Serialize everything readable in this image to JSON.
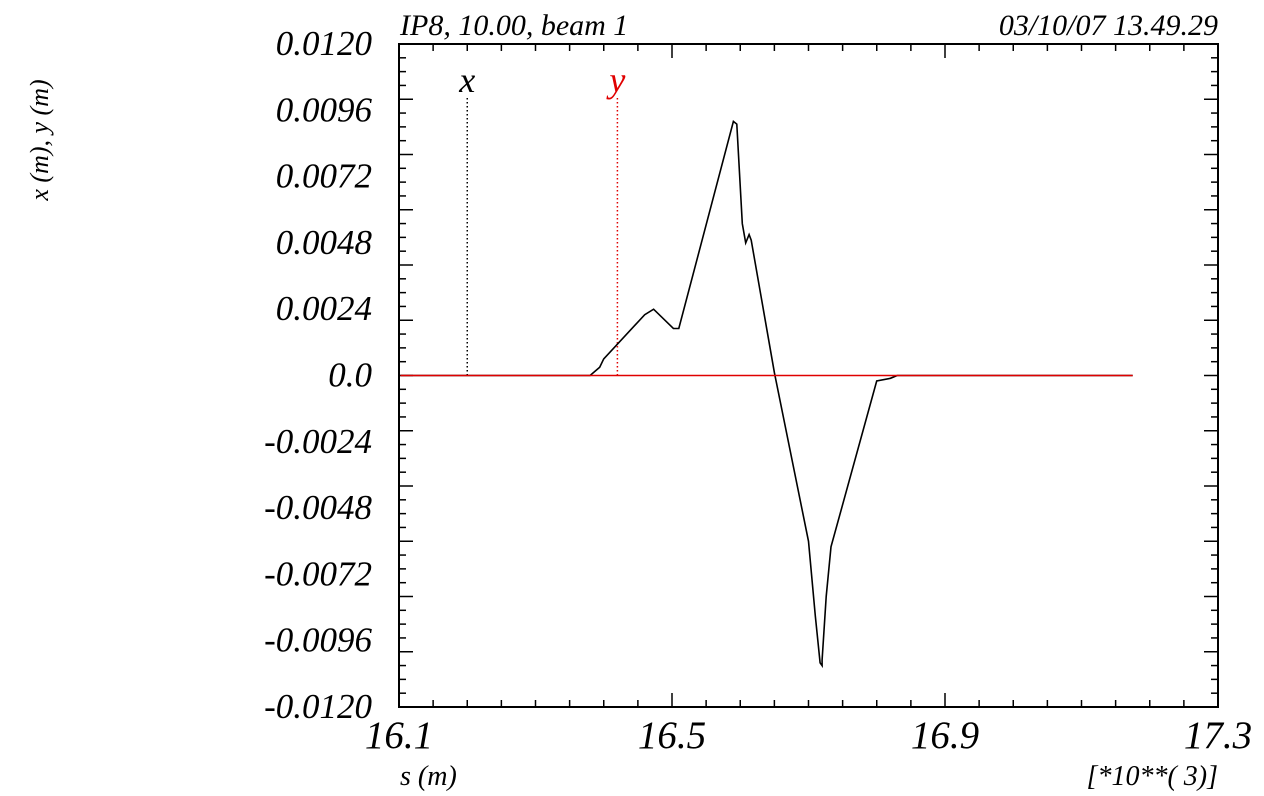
{
  "chart_data": {
    "type": "line",
    "header_left": "IP8, 10.00, beam 1",
    "header_right": "03/10/07 13.49.29",
    "ylabel": "x (m), y (m)",
    "xlabel": "s (m)",
    "x_scale_note": "[*10**( 3)]",
    "xlim": [
      16.1,
      17.3
    ],
    "ylim": [
      -0.012,
      0.012
    ],
    "x_ticks": [
      "16.1",
      "16.5",
      "16.9",
      "17.3"
    ],
    "x_tick_values": [
      16.1,
      16.5,
      16.9,
      17.3
    ],
    "y_ticks": [
      "0.0120",
      "0.0096",
      "0.0072",
      "0.0048",
      "0.0024",
      "0.0",
      "-0.0024",
      "-0.0048",
      "-0.0072",
      "-0.0096",
      "-0.0120"
    ],
    "y_tick_values": [
      0.012,
      0.0096,
      0.0072,
      0.0048,
      0.0024,
      0.0,
      -0.0024,
      -0.0048,
      -0.0072,
      -0.0096,
      -0.012
    ],
    "markers": [
      {
        "label": "x",
        "s": 16.2,
        "color": "#000000"
      },
      {
        "label": "y",
        "s": 16.42,
        "color": "#e00000"
      }
    ],
    "series": [
      {
        "name": "x",
        "color": "#000000",
        "points": [
          [
            16.102,
            0.0
          ],
          [
            16.38,
            0.0
          ],
          [
            16.394,
            0.0003
          ],
          [
            16.4,
            0.0006
          ],
          [
            16.46,
            0.0022
          ],
          [
            16.473,
            0.0024
          ],
          [
            16.502,
            0.0017
          ],
          [
            16.51,
            0.0017
          ],
          [
            16.59,
            0.0092
          ],
          [
            16.595,
            0.0091
          ],
          [
            16.603,
            0.0055
          ],
          [
            16.608,
            0.0048
          ],
          [
            16.613,
            0.0051
          ],
          [
            16.616,
            0.0049
          ],
          [
            16.65,
            0.0001
          ],
          [
            16.7,
            -0.006
          ],
          [
            16.71,
            -0.0087
          ],
          [
            16.717,
            -0.0104
          ],
          [
            16.72,
            -0.0105
          ],
          [
            16.72,
            -0.0103
          ],
          [
            16.726,
            -0.008
          ],
          [
            16.733,
            -0.0062
          ],
          [
            16.8,
            -0.0002
          ],
          [
            16.82,
            -0.0001
          ],
          [
            16.83,
            0.0
          ],
          [
            17.175,
            0.0
          ]
        ]
      },
      {
        "name": "y",
        "color": "#e00000",
        "points": [
          [
            16.102,
            0.0
          ],
          [
            17.175,
            0.0
          ]
        ]
      }
    ]
  }
}
